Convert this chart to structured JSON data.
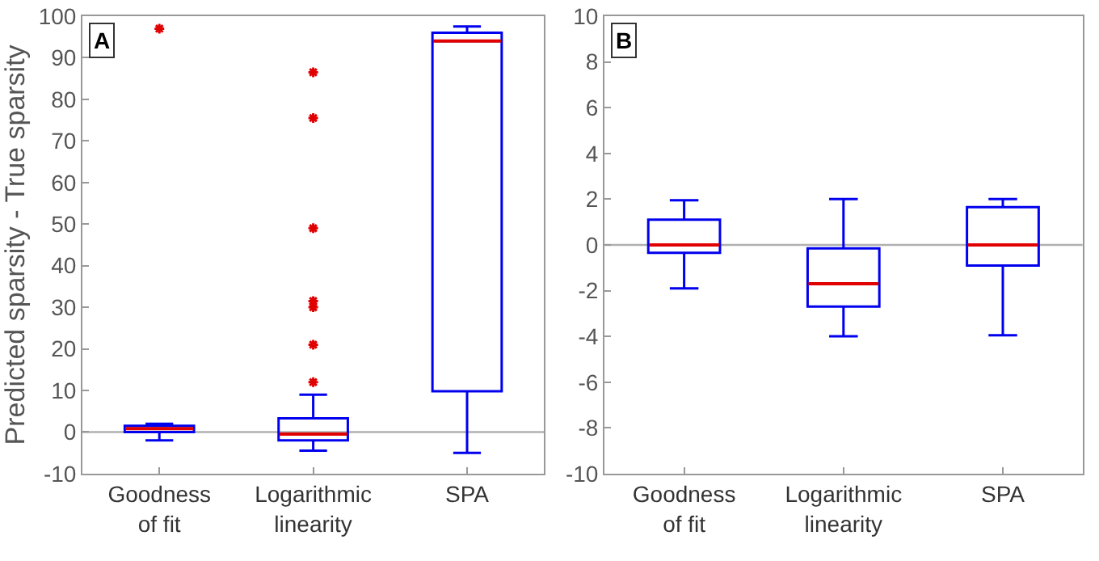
{
  "chart_data": [
    {
      "type": "box",
      "ylabel": "Predicted sparsity - True sparsity",
      "annotations": [
        "A"
      ],
      "categories": [
        "Goodness\nof fit",
        "Logarithmic\nlinearity",
        "SPA"
      ],
      "ylim": [
        -10,
        100
      ],
      "yticks": [
        -10,
        0,
        10,
        20,
        30,
        40,
        50,
        60,
        70,
        80,
        90,
        100
      ],
      "ref_lines": [
        {
          "axis": "y",
          "value": 0,
          "color": "#b0b0b0"
        }
      ],
      "series": [
        {
          "color": "#0000ee",
          "boxes": [
            {
              "low": -2,
              "q1": 0,
              "median": 0.8,
              "q3": 1.5,
              "high": 2,
              "outliers": [
                97
              ]
            },
            {
              "low": -4.5,
              "q1": -2,
              "median": -0.5,
              "q3": 3.3,
              "high": 9,
              "outliers": [
                12,
                21,
                30,
                31.5,
                49,
                75.5,
                86.5
              ]
            },
            {
              "low": -5,
              "q1": 9.8,
              "median": 94,
              "q3": 96,
              "high": 97.5
            }
          ]
        }
      ]
    },
    {
      "type": "box",
      "annotations": [
        "B"
      ],
      "categories": [
        "Goodness\nof fit",
        "Logarithmic\nlinearity",
        "SPA"
      ],
      "ylim": [
        -10,
        10
      ],
      "yticks": [
        -10,
        -8,
        -6,
        -4,
        -2,
        0,
        2,
        4,
        6,
        8,
        10
      ],
      "ref_lines": [
        {
          "axis": "y",
          "value": 0,
          "color": "#b0b0b0"
        }
      ],
      "series": [
        {
          "color": "#0000ee",
          "boxes": [
            {
              "low": -1.9,
              "q1": -0.35,
              "median": 0,
              "q3": 1.1,
              "high": 1.95
            },
            {
              "low": -4,
              "q1": -2.7,
              "median": -1.7,
              "q3": -0.15,
              "high": 2
            },
            {
              "low": -3.95,
              "q1": -0.9,
              "median": 0,
              "q3": 1.65,
              "high": 2
            }
          ]
        }
      ]
    }
  ]
}
